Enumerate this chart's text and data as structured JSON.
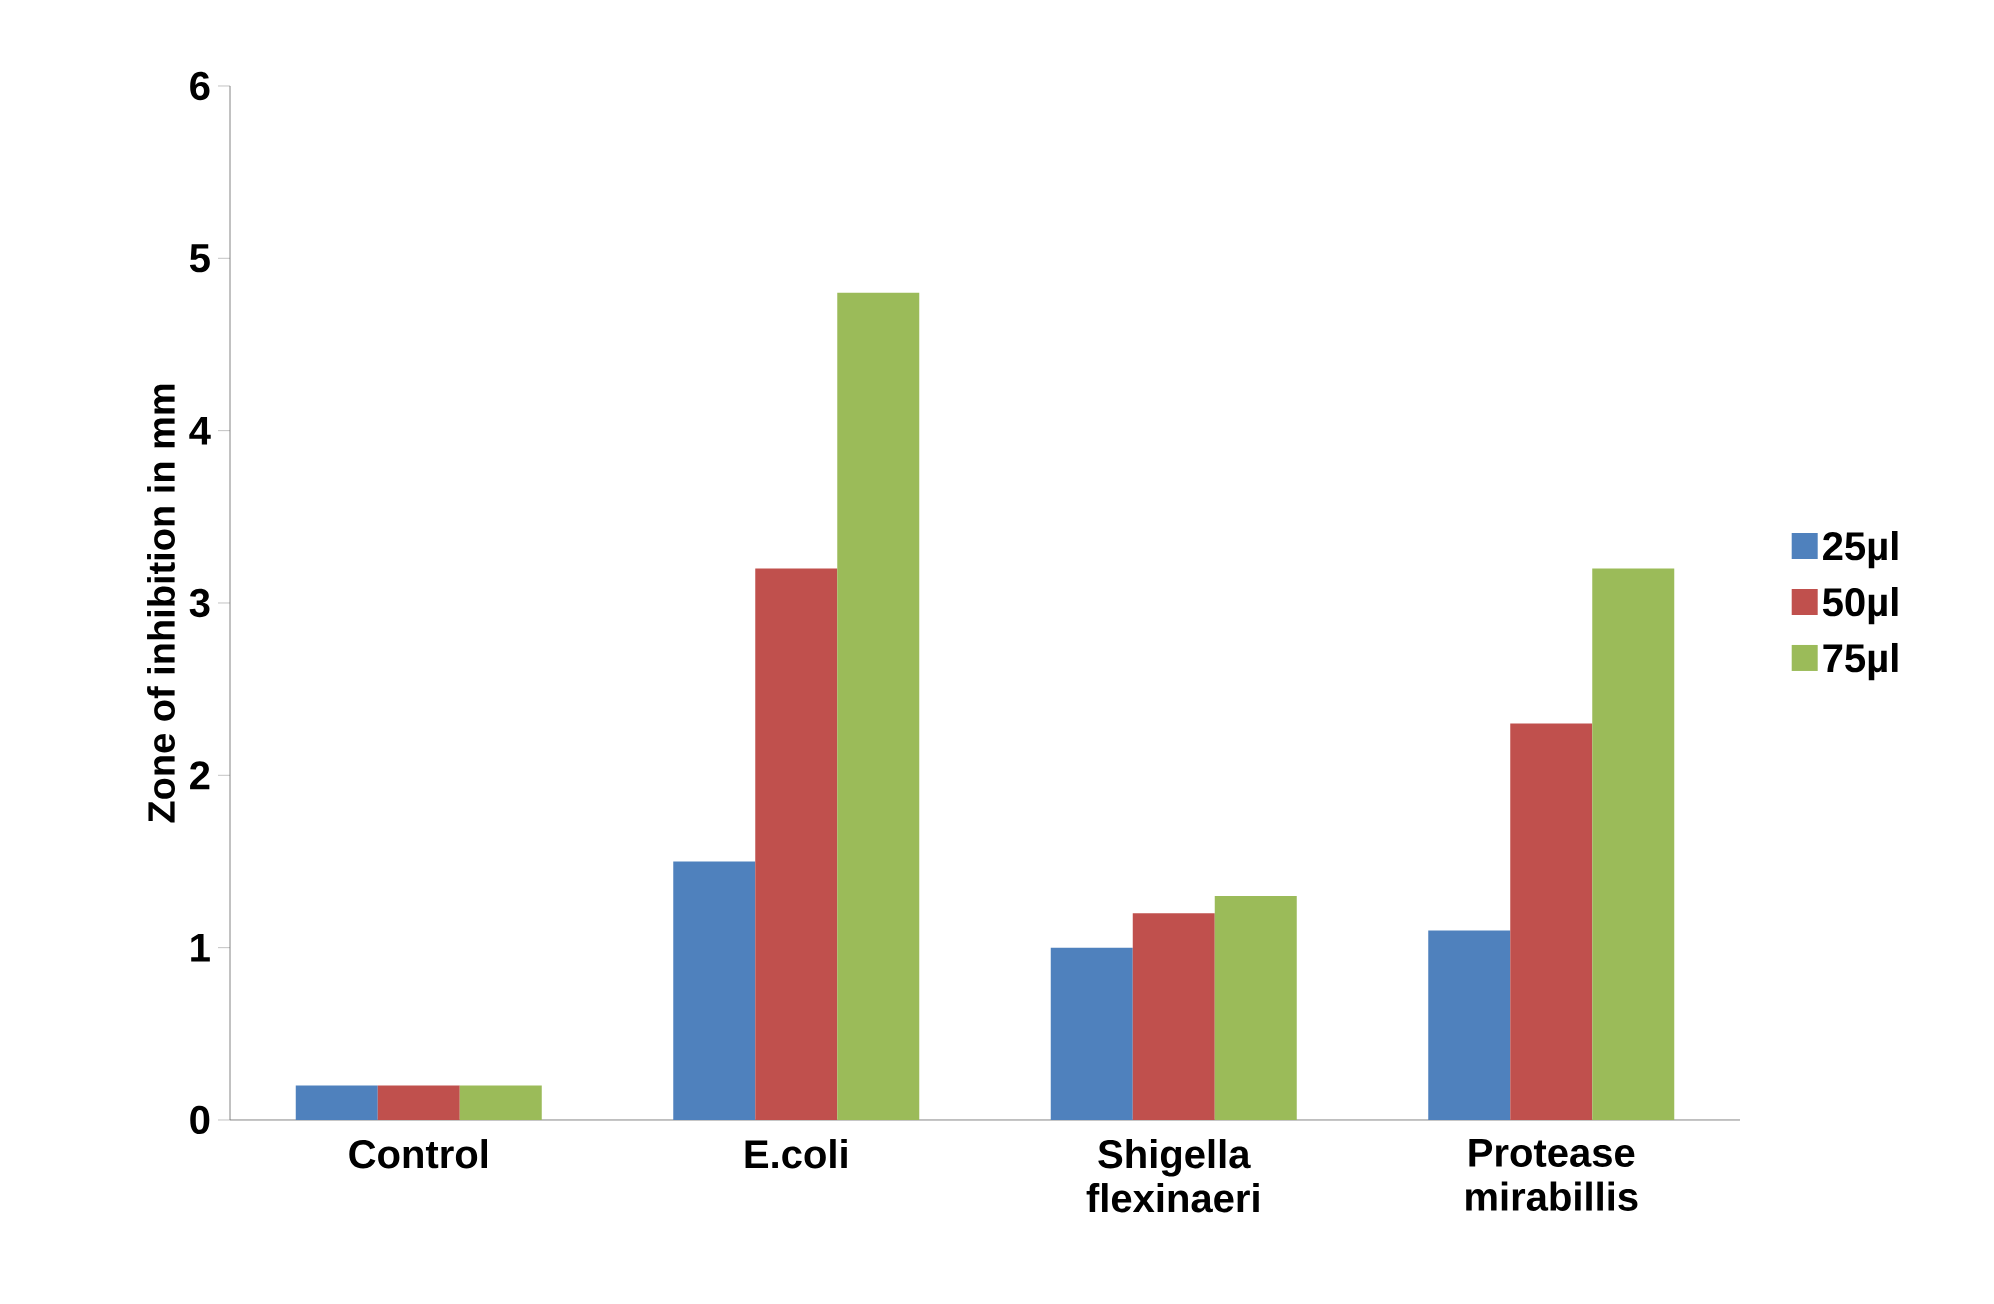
{
  "chart_data": {
    "type": "bar",
    "ylabel": "Zone of inhibition in mm",
    "categories": [
      "Control",
      "E.coli",
      "Shigella flexinaeri",
      "Protease mirabillis"
    ],
    "series": [
      {
        "name": "25µl",
        "color": "#4f81bd",
        "values": [
          0.2,
          1.5,
          1.0,
          1.1
        ]
      },
      {
        "name": "50µl",
        "color": "#c0504d",
        "values": [
          0.2,
          3.2,
          1.2,
          2.3
        ]
      },
      {
        "name": "75µl",
        "color": "#9bbb59",
        "values": [
          0.2,
          4.8,
          1.3,
          3.2
        ]
      }
    ],
    "ylim": [
      0,
      6
    ],
    "yticks": [
      0,
      1,
      2,
      3,
      4,
      5,
      6
    ],
    "grid": false,
    "legend": "right"
  }
}
